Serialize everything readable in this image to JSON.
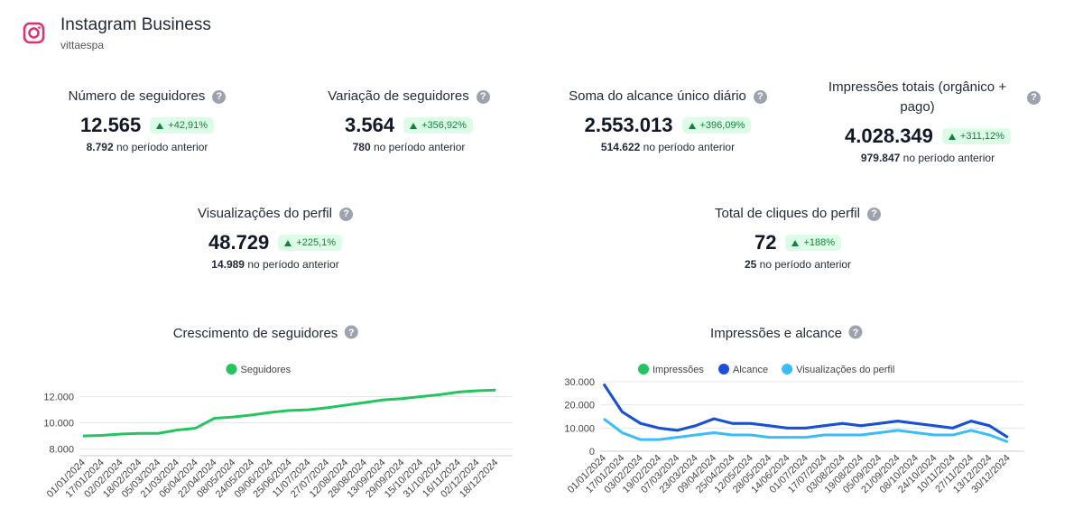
{
  "header": {
    "title": "Instagram Business",
    "subtitle": "vittaespa"
  },
  "kpis": [
    {
      "title": "Número de seguidores",
      "value": "12.565",
      "change": "+42,91%",
      "previous": "8.792",
      "previous_text": "no período anterior"
    },
    {
      "title": "Variação de seguidores",
      "value": "3.564",
      "change": "+356,92%",
      "previous": "780",
      "previous_text": "no período anterior"
    },
    {
      "title": "Soma do alcance único diário",
      "value": "2.553.013",
      "change": "+396,09%",
      "previous": "514.622",
      "previous_text": "no período anterior"
    },
    {
      "title": "Impressões totais (orgânico + pago)",
      "value": "4.028.349",
      "change": "+311,12%",
      "previous": "979.847",
      "previous_text": "no período anterior"
    },
    {
      "title": "Visualizações do perfil",
      "value": "48.729",
      "change": "+225,1%",
      "previous": "14.989",
      "previous_text": "no período anterior"
    },
    {
      "title": "Total de cliques do perfil",
      "value": "72",
      "change": "+188%",
      "previous": "25",
      "previous_text": "no período anterior"
    }
  ],
  "charts": [
    {
      "type": "line",
      "title": "Crescimento de seguidores",
      "categories": [
        "01/01/2024",
        "17/01/2024",
        "02/02/2024",
        "18/02/2024",
        "05/03/2024",
        "21/03/2024",
        "06/04/2024",
        "22/04/2024",
        "08/05/2024",
        "24/05/2024",
        "09/06/2024",
        "25/06/2024",
        "11/07/2024",
        "27/07/2024",
        "12/08/2024",
        "28/08/2024",
        "13/09/2024",
        "29/09/2024",
        "15/10/2024",
        "31/10/2024",
        "16/11/2024",
        "02/12/2024",
        "18/12/2024"
      ],
      "series": [
        {
          "name": "Seguidores",
          "color": "#22c55e",
          "values": [
            9000,
            9050,
            9150,
            9200,
            9200,
            9450,
            9600,
            10350,
            10450,
            10600,
            10800,
            10950,
            11000,
            11150,
            11350,
            11550,
            11750,
            11850,
            12000,
            12150,
            12350,
            12450,
            12500
          ]
        }
      ],
      "ylim": [
        7500,
        13000
      ],
      "yticks": [
        {
          "value": 8000,
          "label": "8.000"
        },
        {
          "value": 10000,
          "label": "10.000"
        },
        {
          "value": 12000,
          "label": "12.000"
        }
      ],
      "grid": true
    },
    {
      "type": "line",
      "title": "Impressões e alcance",
      "categories": [
        "01/01/2024",
        "17/01/2024",
        "03/02/2024",
        "19/02/2024",
        "07/03/2024",
        "23/03/2024",
        "09/04/2024",
        "25/04/2024",
        "12/05/2024",
        "28/05/2024",
        "14/06/2024",
        "01/07/2024",
        "17/07/2024",
        "03/08/2024",
        "19/08/2024",
        "05/09/2024",
        "21/09/2024",
        "08/10/2024",
        "24/10/2024",
        "10/11/2024",
        "27/11/2024",
        "13/12/2024",
        "30/12/2024"
      ],
      "series": [
        {
          "name": "Impressões",
          "color": "#22c55e",
          "values": [
            29000,
            17000,
            12000,
            10000,
            9000,
            11000,
            14000,
            12000,
            12000,
            11000,
            10000,
            10000,
            11000,
            12000,
            11000,
            12000,
            13000,
            12000,
            11000,
            10000,
            13000,
            11000,
            6000
          ]
        },
        {
          "name": "Alcance",
          "color": "#1d4ed8",
          "values": [
            29000,
            17000,
            12000,
            10000,
            9000,
            11000,
            14000,
            12000,
            12000,
            11000,
            10000,
            10000,
            11000,
            12000,
            11000,
            12000,
            13000,
            12000,
            11000,
            10000,
            13000,
            11000,
            6000
          ]
        },
        {
          "name": "Visualizações do perfil",
          "color": "#38bdf8",
          "values": [
            14000,
            8000,
            5000,
            5000,
            6000,
            7000,
            8000,
            7000,
            7000,
            6000,
            6000,
            6000,
            7000,
            7000,
            7000,
            8000,
            9000,
            8000,
            7000,
            7000,
            9000,
            7000,
            4000
          ]
        }
      ],
      "ylim": [
        0,
        30000
      ],
      "yticks": [
        0,
        {
          "value": 10000,
          "label": "10.000"
        },
        {
          "value": 20000,
          "label": "20.000"
        },
        {
          "value": 30000,
          "label": "30.000"
        }
      ],
      "grid": true
    }
  ]
}
